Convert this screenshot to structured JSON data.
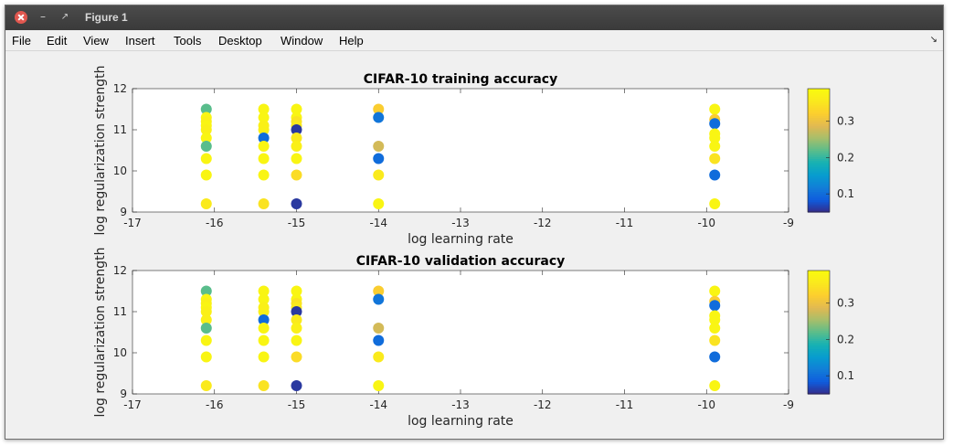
{
  "window": {
    "title": "Figure 1"
  },
  "menu": [
    {
      "label": "File"
    },
    {
      "label": "Edit"
    },
    {
      "label": "View"
    },
    {
      "label": "Insert"
    },
    {
      "label": "Tools"
    },
    {
      "label": "Desktop"
    },
    {
      "label": "Window"
    },
    {
      "label": "Help"
    }
  ],
  "menu_dock_icon": "dock-arrow-icon",
  "colors": {
    "title_bar": "#3f3f3f",
    "close_button": "#e0574f",
    "axes_bg": "#ffffff",
    "figure_bg": "#f0f0f0"
  },
  "chart_data": [
    {
      "type": "scatter",
      "title": "CIFAR-10 training accuracy",
      "xlabel": "log learning rate",
      "ylabel": "log regularization strength",
      "xlim": [
        -17,
        -9
      ],
      "ylim": [
        9,
        12
      ],
      "xticks": [
        "-17",
        "-16",
        "-15",
        "-14",
        "-13",
        "-12",
        "-11",
        "-10",
        "-9"
      ],
      "yticks": [
        "9",
        "10",
        "11",
        "12"
      ],
      "colorbar": {
        "ticks": [
          "0.1",
          "0.2",
          "0.3"
        ],
        "range": [
          0.05,
          0.39
        ],
        "colormap": "parula"
      },
      "points": [
        {
          "x": -16.1,
          "y": 11.5,
          "v": 0.22
        },
        {
          "x": -16.1,
          "y": 11.3,
          "v": 0.38
        },
        {
          "x": -16.1,
          "y": 11.2,
          "v": 0.37
        },
        {
          "x": -16.1,
          "y": 11.1,
          "v": 0.38
        },
        {
          "x": -16.1,
          "y": 11.0,
          "v": 0.37
        },
        {
          "x": -16.1,
          "y": 10.8,
          "v": 0.38
        },
        {
          "x": -16.1,
          "y": 10.6,
          "v": 0.22
        },
        {
          "x": -16.1,
          "y": 10.3,
          "v": 0.38
        },
        {
          "x": -16.1,
          "y": 9.9,
          "v": 0.38
        },
        {
          "x": -16.1,
          "y": 9.2,
          "v": 0.36
        },
        {
          "x": -15.4,
          "y": 11.5,
          "v": 0.38
        },
        {
          "x": -15.4,
          "y": 11.3,
          "v": 0.38
        },
        {
          "x": -15.4,
          "y": 11.1,
          "v": 0.37
        },
        {
          "x": -15.4,
          "y": 11.0,
          "v": 0.37
        },
        {
          "x": -15.4,
          "y": 10.8,
          "v": 0.1
        },
        {
          "x": -15.4,
          "y": 10.6,
          "v": 0.38
        },
        {
          "x": -15.4,
          "y": 10.3,
          "v": 0.38
        },
        {
          "x": -15.4,
          "y": 9.9,
          "v": 0.38
        },
        {
          "x": -15.4,
          "y": 9.2,
          "v": 0.35
        },
        {
          "x": -15.0,
          "y": 11.5,
          "v": 0.38
        },
        {
          "x": -15.0,
          "y": 11.3,
          "v": 0.38
        },
        {
          "x": -15.0,
          "y": 11.2,
          "v": 0.35
        },
        {
          "x": -15.0,
          "y": 11.1,
          "v": 0.36
        },
        {
          "x": -15.0,
          "y": 11.0,
          "v": 0.06
        },
        {
          "x": -15.0,
          "y": 10.8,
          "v": 0.36
        },
        {
          "x": -15.0,
          "y": 10.6,
          "v": 0.37
        },
        {
          "x": -15.0,
          "y": 10.3,
          "v": 0.38
        },
        {
          "x": -15.0,
          "y": 9.9,
          "v": 0.34
        },
        {
          "x": -15.0,
          "y": 9.2,
          "v": 0.06
        },
        {
          "x": -14.0,
          "y": 11.5,
          "v": 0.32
        },
        {
          "x": -14.0,
          "y": 11.3,
          "v": 0.11
        },
        {
          "x": -14.0,
          "y": 10.6,
          "v": 0.28
        },
        {
          "x": -14.0,
          "y": 10.3,
          "v": 0.1
        },
        {
          "x": -14.0,
          "y": 9.9,
          "v": 0.36
        },
        {
          "x": -14.0,
          "y": 9.2,
          "v": 0.38
        },
        {
          "x": -9.9,
          "y": 11.5,
          "v": 0.38
        },
        {
          "x": -9.9,
          "y": 11.25,
          "v": 0.32
        },
        {
          "x": -9.9,
          "y": 11.15,
          "v": 0.1
        },
        {
          "x": -9.9,
          "y": 10.9,
          "v": 0.38
        },
        {
          "x": -9.9,
          "y": 10.8,
          "v": 0.38
        },
        {
          "x": -9.9,
          "y": 10.6,
          "v": 0.38
        },
        {
          "x": -9.9,
          "y": 10.3,
          "v": 0.35
        },
        {
          "x": -9.9,
          "y": 9.9,
          "v": 0.1
        },
        {
          "x": -9.9,
          "y": 9.2,
          "v": 0.38
        }
      ]
    },
    {
      "type": "scatter",
      "title": "CIFAR-10 validation accuracy",
      "xlabel": "log learning rate",
      "ylabel": "log regularization strength",
      "xlim": [
        -17,
        -9
      ],
      "ylim": [
        9,
        12
      ],
      "xticks": [
        "-17",
        "-16",
        "-15",
        "-14",
        "-13",
        "-12",
        "-11",
        "-10",
        "-9"
      ],
      "yticks": [
        "9",
        "10",
        "11",
        "12"
      ],
      "colorbar": {
        "ticks": [
          "0.1",
          "0.2",
          "0.3"
        ],
        "range": [
          0.05,
          0.39
        ],
        "colormap": "parula"
      },
      "points": [
        {
          "x": -16.1,
          "y": 11.5,
          "v": 0.22
        },
        {
          "x": -16.1,
          "y": 11.3,
          "v": 0.38
        },
        {
          "x": -16.1,
          "y": 11.2,
          "v": 0.37
        },
        {
          "x": -16.1,
          "y": 11.1,
          "v": 0.38
        },
        {
          "x": -16.1,
          "y": 11.0,
          "v": 0.37
        },
        {
          "x": -16.1,
          "y": 10.8,
          "v": 0.37
        },
        {
          "x": -16.1,
          "y": 10.6,
          "v": 0.22
        },
        {
          "x": -16.1,
          "y": 10.3,
          "v": 0.38
        },
        {
          "x": -16.1,
          "y": 9.9,
          "v": 0.38
        },
        {
          "x": -16.1,
          "y": 9.2,
          "v": 0.36
        },
        {
          "x": -15.4,
          "y": 11.5,
          "v": 0.38
        },
        {
          "x": -15.4,
          "y": 11.3,
          "v": 0.38
        },
        {
          "x": -15.4,
          "y": 11.1,
          "v": 0.37
        },
        {
          "x": -15.4,
          "y": 11.0,
          "v": 0.37
        },
        {
          "x": -15.4,
          "y": 10.8,
          "v": 0.1
        },
        {
          "x": -15.4,
          "y": 10.6,
          "v": 0.38
        },
        {
          "x": -15.4,
          "y": 10.3,
          "v": 0.38
        },
        {
          "x": -15.4,
          "y": 9.9,
          "v": 0.38
        },
        {
          "x": -15.4,
          "y": 9.2,
          "v": 0.35
        },
        {
          "x": -15.0,
          "y": 11.5,
          "v": 0.38
        },
        {
          "x": -15.0,
          "y": 11.3,
          "v": 0.38
        },
        {
          "x": -15.0,
          "y": 11.2,
          "v": 0.35
        },
        {
          "x": -15.0,
          "y": 11.1,
          "v": 0.36
        },
        {
          "x": -15.0,
          "y": 11.0,
          "v": 0.06
        },
        {
          "x": -15.0,
          "y": 10.8,
          "v": 0.36
        },
        {
          "x": -15.0,
          "y": 10.6,
          "v": 0.37
        },
        {
          "x": -15.0,
          "y": 10.3,
          "v": 0.38
        },
        {
          "x": -15.0,
          "y": 9.9,
          "v": 0.34
        },
        {
          "x": -15.0,
          "y": 9.2,
          "v": 0.06
        },
        {
          "x": -14.0,
          "y": 11.5,
          "v": 0.32
        },
        {
          "x": -14.0,
          "y": 11.3,
          "v": 0.11
        },
        {
          "x": -14.0,
          "y": 10.6,
          "v": 0.28
        },
        {
          "x": -14.0,
          "y": 10.3,
          "v": 0.1
        },
        {
          "x": -14.0,
          "y": 9.9,
          "v": 0.36
        },
        {
          "x": -14.0,
          "y": 9.2,
          "v": 0.38
        },
        {
          "x": -9.9,
          "y": 11.5,
          "v": 0.38
        },
        {
          "x": -9.9,
          "y": 11.25,
          "v": 0.32
        },
        {
          "x": -9.9,
          "y": 11.15,
          "v": 0.1
        },
        {
          "x": -9.9,
          "y": 10.9,
          "v": 0.38
        },
        {
          "x": -9.9,
          "y": 10.8,
          "v": 0.38
        },
        {
          "x": -9.9,
          "y": 10.6,
          "v": 0.38
        },
        {
          "x": -9.9,
          "y": 10.3,
          "v": 0.35
        },
        {
          "x": -9.9,
          "y": 9.9,
          "v": 0.1
        },
        {
          "x": -9.9,
          "y": 9.2,
          "v": 0.38
        }
      ]
    }
  ]
}
